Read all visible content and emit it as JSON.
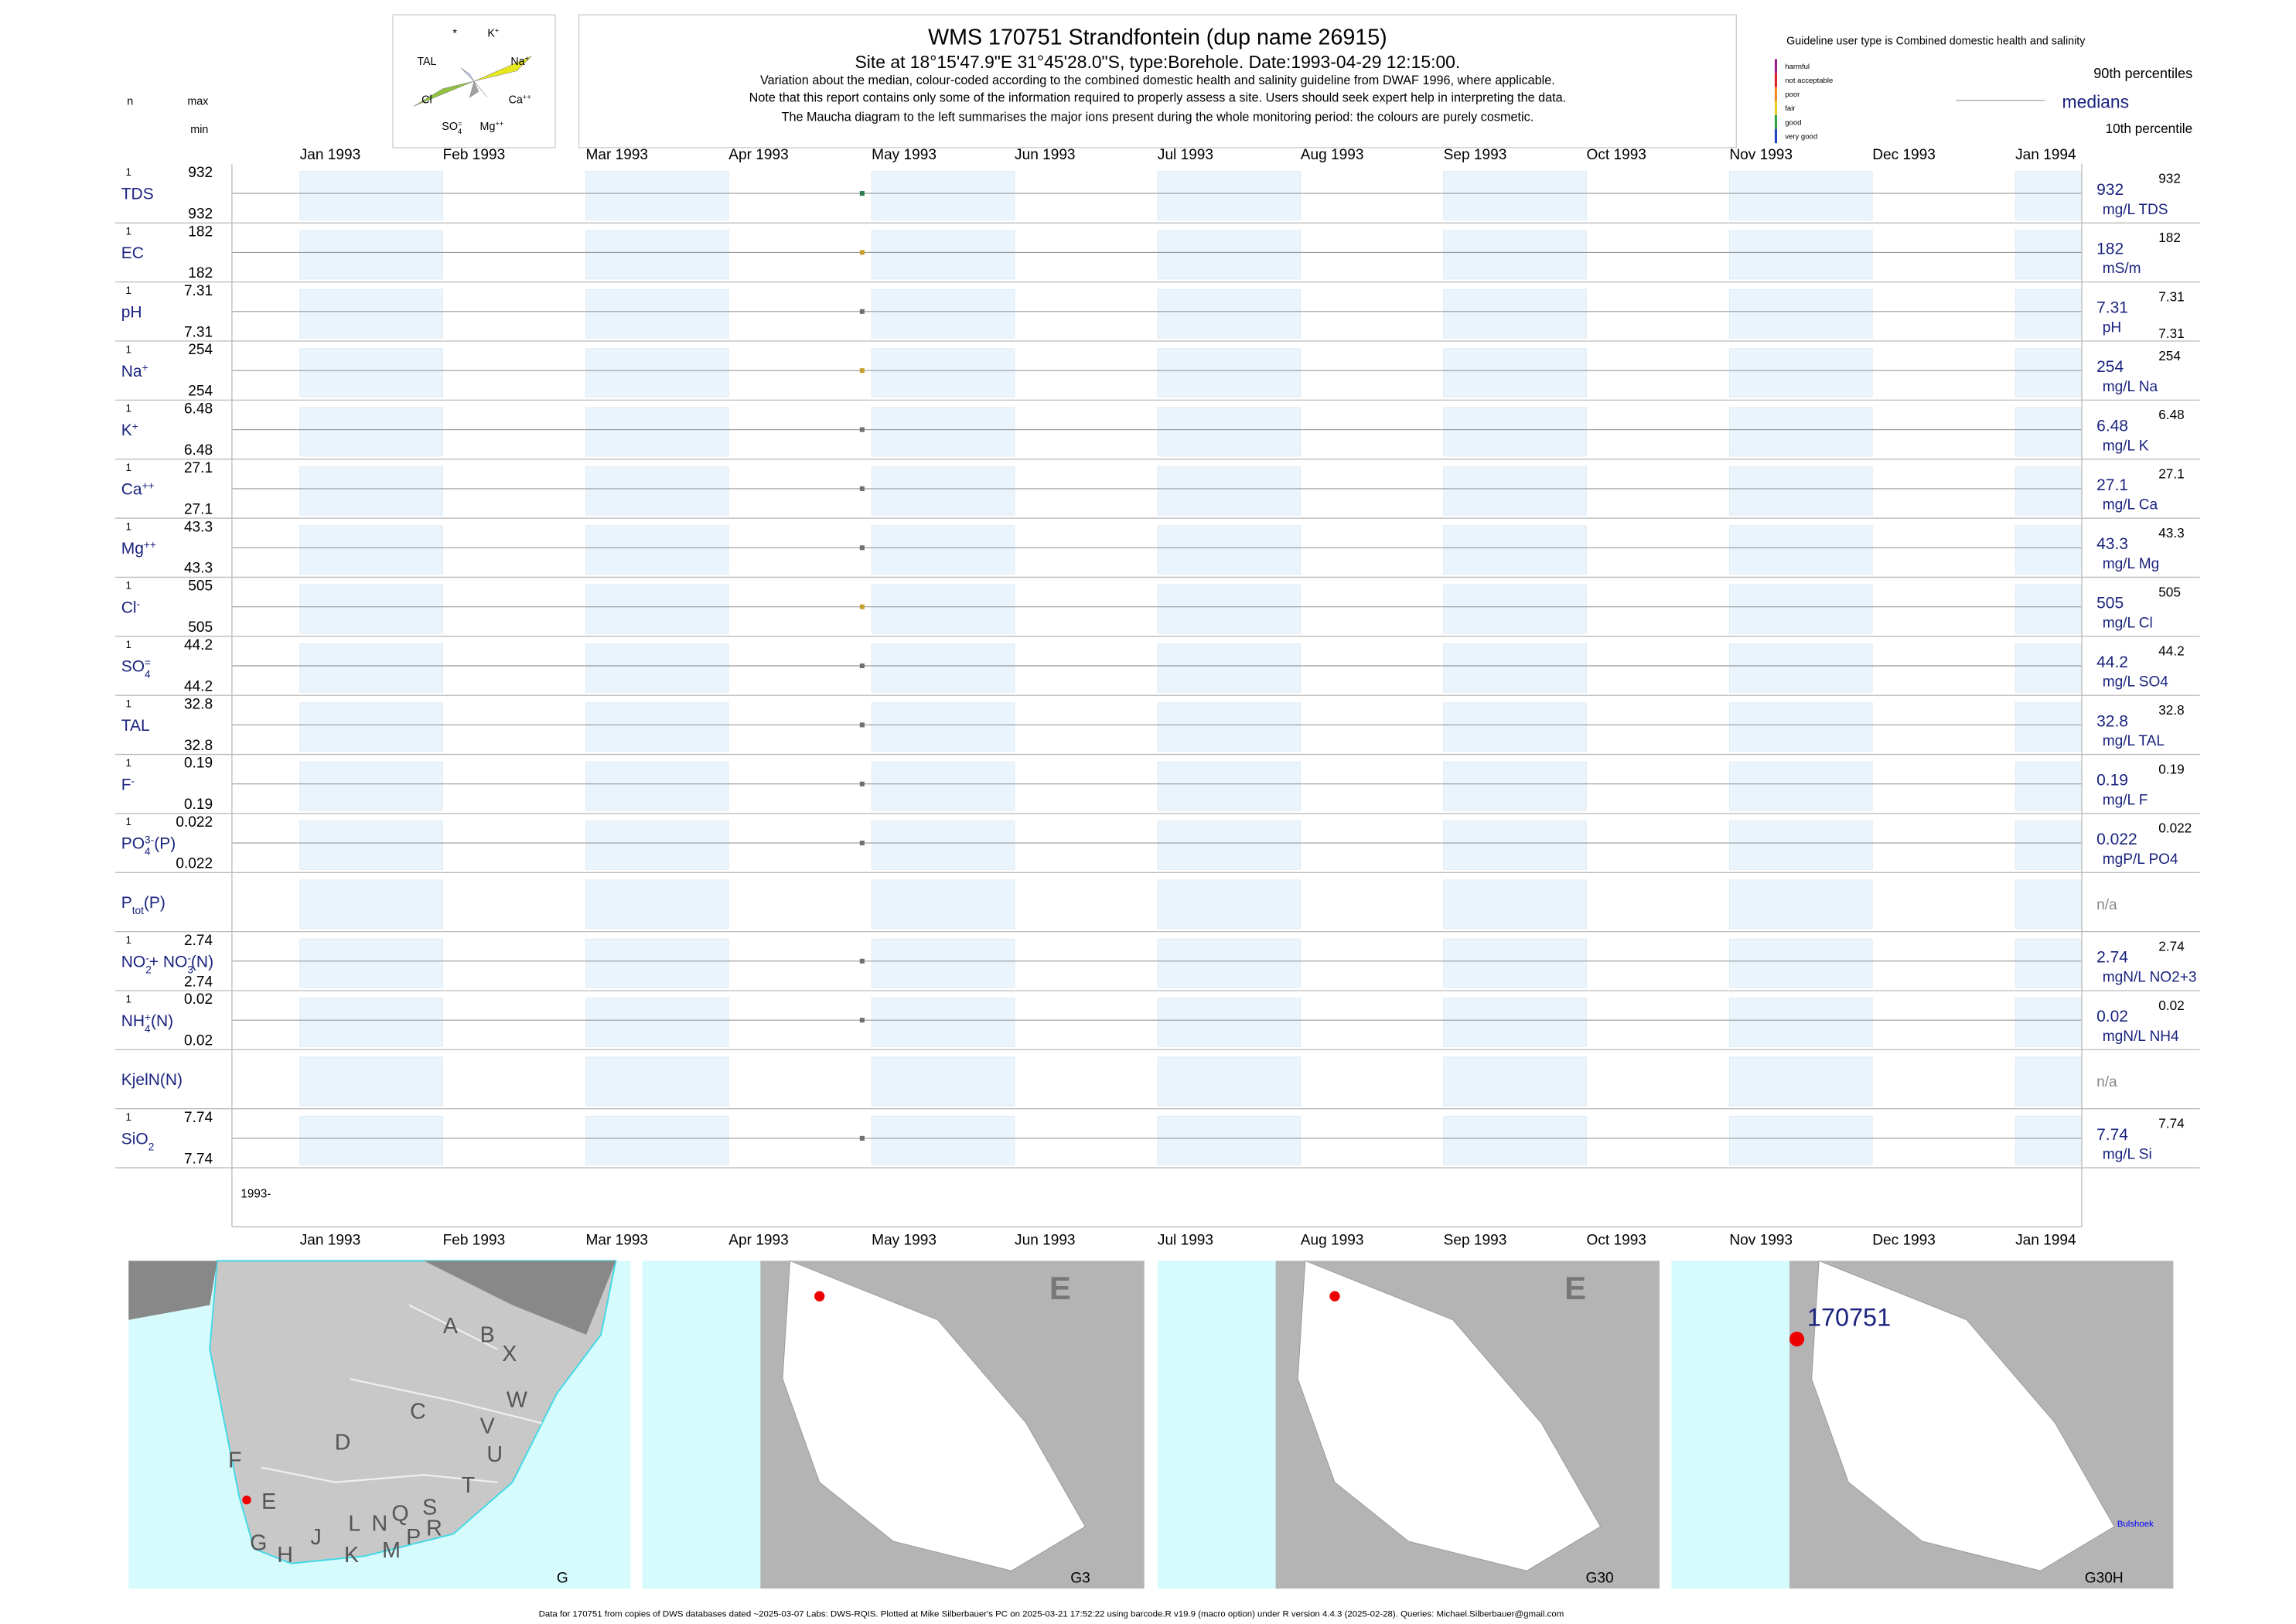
{
  "header": {
    "title": "WMS 170751  Strandfontein (dup name 26915)",
    "subtitle": "Site at 18°15'47.9\"E 31°45'28.0\"S, type:Borehole. Date:1993-04-29 12:15:00.",
    "notes": [
      "Variation about the median,  colour-coded according to the combined domestic health and salinity guideline from DWAF 1996, where applicable.",
      "Note that this report contains only some of the information required to properly assess a site. Users should seek expert help in interpreting the data.",
      "The Maucha diagram to the left summarises the major ions present during the whole monitoring period: the colours are purely cosmetic."
    ],
    "n": "n",
    "max": "max",
    "min": "min",
    "guideline": "Guideline user type is Combined domestic health and salinity",
    "guideline_legend": [
      {
        "label": "harmful",
        "color": "#9b1b8f"
      },
      {
        "label": "not acceptable",
        "color": "#e0202a"
      },
      {
        "label": "poor",
        "color": "#f08a20"
      },
      {
        "label": "fair",
        "color": "#e8d020"
      },
      {
        "label": "good",
        "color": "#30a040"
      },
      {
        "label": "very good",
        "color": "#2040c0"
      }
    ],
    "p90": "90th percentiles",
    "medians": "medians",
    "p10": "10th percentile"
  },
  "maucha": [
    [
      {
        "text": "*"
      }
    ],
    [
      {
        "text": "K"
      },
      {
        "text": "+",
        "pos": "sup"
      }
    ],
    [
      {
        "text": "TAL"
      }
    ],
    [
      {
        "text": "Na"
      },
      {
        "text": "+",
        "pos": "sup"
      }
    ],
    [
      {
        "text": "Cl"
      }
    ],
    [
      {
        "text": "Ca"
      },
      {
        "text": "++",
        "pos": "sup"
      }
    ],
    [
      {
        "text": "SO"
      },
      {
        "text": "4",
        "pos": "sub"
      },
      {
        "text": "=",
        "pos": "sup"
      }
    ],
    [
      {
        "text": "Mg"
      },
      {
        "text": "++",
        "pos": "sup"
      }
    ]
  ],
  "months": [
    "Jan 1993",
    "Feb 1993",
    "Mar 1993",
    "Apr 1993",
    "May 1993",
    "Jun 1993",
    "Jul 1993",
    "Aug 1993",
    "Sep 1993",
    "Oct 1993",
    "Nov 1993",
    "Dec 1993",
    "Jan 1994"
  ],
  "rows": [
    {
      "label": [
        {
          "text": "TDS"
        }
      ],
      "n": 1,
      "max": 932,
      "min": 932,
      "median": 932,
      "p90": 932,
      "unit": "mg/L TDS",
      "color": "#2e7d4f"
    },
    {
      "label": [
        {
          "text": "EC"
        }
      ],
      "n": 1,
      "max": 182,
      "min": 182,
      "median": 182,
      "p90": 182,
      "unit": "mS/m",
      "color": "#c8a030"
    },
    {
      "label": [
        {
          "text": "pH"
        }
      ],
      "n": 1,
      "max": 7.31,
      "min": 7.31,
      "median": 7.31,
      "p90": 7.31,
      "p10": 7.31,
      "unit": "pH",
      "color": "#707070"
    },
    {
      "label": [
        {
          "text": "Na"
        },
        {
          "text": "+",
          "pos": "sup"
        }
      ],
      "n": 1,
      "max": 254,
      "min": 254,
      "median": 254,
      "p90": 254,
      "unit": "mg/L Na",
      "color": "#c8a030"
    },
    {
      "label": [
        {
          "text": "K"
        },
        {
          "text": "+",
          "pos": "sup"
        }
      ],
      "n": 1,
      "max": 6.48,
      "min": 6.48,
      "median": 6.48,
      "p90": 6.48,
      "unit": "mg/L K",
      "color": "#707070"
    },
    {
      "label": [
        {
          "text": "Ca"
        },
        {
          "text": "++",
          "pos": "sup"
        }
      ],
      "n": 1,
      "max": 27.1,
      "min": 27.1,
      "median": 27.1,
      "p90": 27.1,
      "unit": "mg/L Ca",
      "color": "#707070"
    },
    {
      "label": [
        {
          "text": "Mg"
        },
        {
          "text": "++",
          "pos": "sup"
        }
      ],
      "n": 1,
      "max": 43.3,
      "min": 43.3,
      "median": 43.3,
      "p90": 43.3,
      "unit": "mg/L Mg",
      "color": "#707070"
    },
    {
      "label": [
        {
          "text": "Cl"
        },
        {
          "text": "-",
          "pos": "sup"
        }
      ],
      "n": 1,
      "max": 505,
      "min": 505,
      "median": 505,
      "p90": 505,
      "unit": "mg/L Cl",
      "color": "#c8a030"
    },
    {
      "label": [
        {
          "text": "SO"
        },
        {
          "text": "4",
          "pos": "sub"
        },
        {
          "text": "=",
          "pos": "sup"
        }
      ],
      "n": 1,
      "max": 44.2,
      "min": 44.2,
      "median": 44.2,
      "p90": 44.2,
      "unit": "mg/L SO4",
      "color": "#707070"
    },
    {
      "label": [
        {
          "text": "TAL"
        }
      ],
      "n": 1,
      "max": 32.8,
      "min": 32.8,
      "median": 32.8,
      "p90": 32.8,
      "unit": "mg/L TAL",
      "color": "#707070"
    },
    {
      "label": [
        {
          "text": "F"
        },
        {
          "text": "-",
          "pos": "sup"
        }
      ],
      "n": 1,
      "max": 0.19,
      "min": 0.19,
      "median": 0.19,
      "p90": 0.19,
      "unit": "mg/L F",
      "color": "#707070"
    },
    {
      "label": [
        {
          "text": "PO"
        },
        {
          "text": "4",
          "pos": "sub"
        },
        {
          "text": "3-",
          "pos": "sup"
        },
        {
          "text": "(P)"
        }
      ],
      "n": 1,
      "max": 0.022,
      "min": 0.022,
      "median": 0.022,
      "p90": 0.022,
      "unit": "mgP/L PO4",
      "color": "#707070"
    },
    {
      "label": [
        {
          "text": "P"
        },
        {
          "text": "tot",
          "pos": "sub"
        },
        {
          "text": "(P)"
        }
      ],
      "na": "n/a"
    },
    {
      "label": [
        {
          "text": "NO"
        },
        {
          "text": "2",
          "pos": "sub"
        },
        {
          "text": "-",
          "pos": "sup"
        },
        {
          "text": "+ NO"
        },
        {
          "text": "3",
          "pos": "sub"
        },
        {
          "text": "-",
          "pos": "sup"
        },
        {
          "text": "(N)"
        }
      ],
      "n": 1,
      "max": 2.74,
      "min": 2.74,
      "median": 2.74,
      "p90": 2.74,
      "unit": "mgN/L NO2+3",
      "color": "#707070"
    },
    {
      "label": [
        {
          "text": "NH"
        },
        {
          "text": "4",
          "pos": "sub"
        },
        {
          "text": "+",
          "pos": "sup"
        },
        {
          "text": "(N)"
        }
      ],
      "n": 1,
      "max": 0.02,
      "min": 0.02,
      "median": 0.02,
      "p90": 0.02,
      "unit": "mgN/L NH4",
      "color": "#707070"
    },
    {
      "label": [
        {
          "text": "KjelN(N)"
        }
      ],
      "na": "n/a"
    },
    {
      "label": [
        {
          "text": "SiO"
        },
        {
          "text": "2",
          "pos": "sub"
        }
      ],
      "n": 1,
      "max": 7.74,
      "min": 7.74,
      "median": 7.74,
      "p90": 7.74,
      "unit": "mg/L Si",
      "color": "#707070"
    }
  ],
  "bottom_label": "1993-",
  "maps": {
    "letters": [
      "A",
      "B",
      "X",
      "W",
      "C",
      "V",
      "U",
      "D",
      "F",
      "E",
      "T",
      "S",
      "R",
      "Q",
      "N",
      "L",
      "P",
      "M",
      "J",
      "K",
      "H",
      "G"
    ],
    "panel_labels": [
      "G",
      "G3",
      "G30",
      "G30H"
    ],
    "region": "E",
    "site": "170751",
    "place": "Bulshoek"
  },
  "footer": "Data for 170751 from copies of DWS databases dated ~2025-03-07 Labs: DWS-RQIS. Plotted at Mike Silberbauer's PC on 2025-03-21 17:52:22 using barcode.R v19.9 (macro option) under R version 4.4.3 (2025-02-28). Queries: Michael.Silberbauer@gmail.com"
}
